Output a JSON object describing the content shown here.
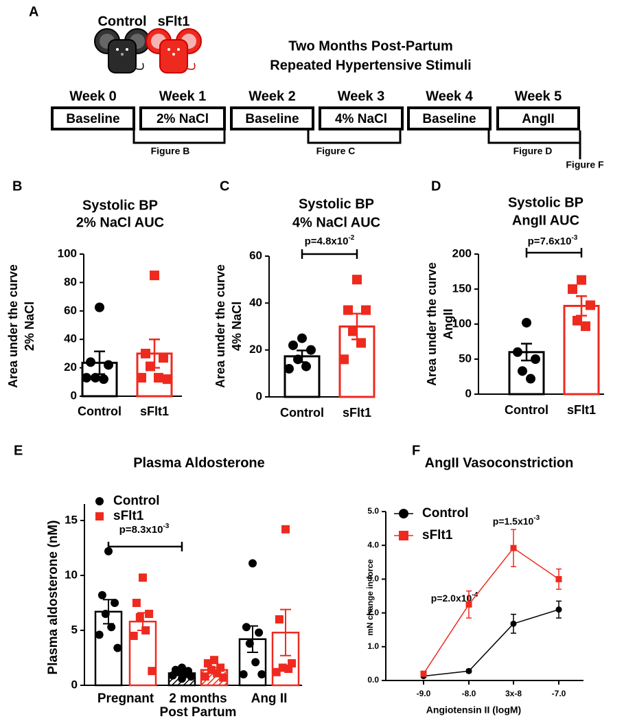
{
  "panel_a": {
    "label": "A",
    "mice": [
      "Control",
      "sFlt1"
    ],
    "title": [
      "Two Months Post-Partum",
      "Repeated Hypertensive Stimuli"
    ],
    "weeks": [
      {
        "week": "Week 0",
        "stimulus": "Baseline"
      },
      {
        "week": "Week 1",
        "stimulus": "2% NaCl"
      },
      {
        "week": "Week 2",
        "stimulus": "Baseline"
      },
      {
        "week": "Week 3",
        "stimulus": "4% NaCl"
      },
      {
        "week": "Week 4",
        "stimulus": "Baseline"
      },
      {
        "week": "Week 5",
        "stimulus": "AngII"
      }
    ],
    "brackets": [
      "Figure B",
      "Figure C",
      "Figure D",
      "Figure F"
    ]
  },
  "chart_data": [
    {
      "type": "bar",
      "label": "B",
      "title": "Systolic BP",
      "subtitle": "2% NaCl AUC",
      "ylabel": [
        "Area under the curve",
        "2% NaCl"
      ],
      "categories": [
        "Control",
        "sFlt1"
      ],
      "colors": [
        "#000000",
        "#ee2a1f"
      ],
      "markers": [
        "circle",
        "square"
      ],
      "values": [
        23.5,
        30
      ],
      "errors": [
        8,
        10
      ],
      "points": [
        [
          62.5,
          24,
          22,
          13,
          12,
          13
        ],
        [
          85,
          30,
          27,
          21,
          13,
          13,
          12
        ]
      ],
      "ylim": [
        0,
        100
      ],
      "yticks": [
        0,
        20,
        40,
        60,
        80,
        100
      ]
    },
    {
      "type": "bar",
      "label": "C",
      "title": "Systolic BP",
      "subtitle": "4% NaCl AUC",
      "ylabel": [
        "Area under the curve",
        "4% NaCl"
      ],
      "categories": [
        "Control",
        "sFlt1"
      ],
      "colors": [
        "#000000",
        "#ee2a1f"
      ],
      "markers": [
        "circle",
        "square"
      ],
      "values": [
        17.3,
        30
      ],
      "errors": [
        2.5,
        5.5
      ],
      "points": [
        [
          25,
          22,
          20,
          16,
          13,
          12
        ],
        [
          50,
          37,
          37,
          28,
          23,
          16
        ]
      ],
      "ylim": [
        0,
        60
      ],
      "yticks": [
        0,
        20,
        40,
        60
      ],
      "annotations": [
        {
          "text": "p=4.8x10",
          "superscript": "-2"
        }
      ]
    },
    {
      "type": "bar",
      "label": "D",
      "title": "Systolic BP",
      "subtitle": "AngII AUC",
      "ylabel": [
        "Area under the curve",
        "AngII"
      ],
      "categories": [
        "Control",
        "sFlt1"
      ],
      "colors": [
        "#000000",
        "#ee2a1f"
      ],
      "markers": [
        "circle",
        "square"
      ],
      "values": [
        60,
        126
      ],
      "errors": [
        12,
        14
      ],
      "points": [
        [
          102,
          60,
          50,
          33,
          22
        ],
        [
          163,
          150,
          127,
          105,
          97
        ]
      ],
      "ylim": [
        0,
        200
      ],
      "yticks": [
        0,
        50,
        100,
        150,
        200
      ],
      "annotations": [
        {
          "text": "p=7.6x10",
          "superscript": "-3"
        }
      ]
    },
    {
      "type": "bar",
      "label": "E",
      "title": "Plasma Aldosterone",
      "ylabel": "Plasma aldosterone (nM)",
      "categories": [
        "Pregnant",
        [
          "2 months",
          "Post Partum"
        ],
        "Ang II"
      ],
      "hatched": [
        false,
        true,
        false
      ],
      "series": [
        {
          "name": "Control",
          "color": "#000000",
          "marker": "circle",
          "values": [
            6.7,
            1.1,
            4.2
          ],
          "errors": [
            1.1,
            0.2,
            1.2
          ],
          "points": [
            [
              12.2,
              8.2,
              7.5,
              6.5,
              5.3,
              4.6,
              3.4
            ],
            [
              1.6,
              1.4,
              1.3,
              1.2,
              1.0,
              0.9,
              0.8,
              0.6
            ],
            [
              11.1,
              5.3,
              4.8,
              3.8,
              2.1,
              1.0,
              1.0
            ]
          ]
        },
        {
          "name": "sFlt1",
          "color": "#ee2a1f",
          "marker": "square",
          "values": [
            5.8,
            1.4,
            4.8
          ],
          "errors": [
            0.8,
            0.2,
            2.1
          ],
          "points": [
            [
              9.8,
              7.5,
              6.5,
              6.2,
              5.0,
              4.5,
              1.3
            ],
            [
              2.3,
              2.0,
              1.6,
              1.4,
              1.1,
              0.8,
              0.7
            ],
            [
              14.2,
              6.0,
              2.0,
              1.6,
              1.5,
              1.2
            ]
          ]
        }
      ],
      "ylim": [
        0,
        16.5
      ],
      "yticks": [
        0,
        5,
        10,
        15
      ],
      "legend": "upper left",
      "annotations": [
        {
          "text": "p=8.3x10",
          "superscript": "-3"
        }
      ]
    },
    {
      "type": "line",
      "label": "F",
      "title": "AngII Vasoconstriction",
      "xlabel": "Angiotensin II (logM)",
      "ylabel": "mN change in force",
      "categories": [
        "-9.0",
        "-8.0",
        "3x-8",
        "-7.0"
      ],
      "series": [
        {
          "name": "Control",
          "color": "#000000",
          "marker": "circle",
          "values": [
            0.13,
            0.28,
            1.68,
            2.1
          ],
          "errors": [
            0.03,
            0.05,
            0.28,
            0.25
          ]
        },
        {
          "name": "sFlt1",
          "color": "#ee2a1f",
          "marker": "square",
          "values": [
            0.2,
            2.25,
            3.92,
            3.0
          ],
          "errors": [
            0.05,
            0.4,
            0.55,
            0.3
          ]
        }
      ],
      "ylim": [
        0,
        5
      ],
      "yticks": [
        {
          "value": 0,
          "label": "0.0"
        },
        {
          "value": 1,
          "label": "1.0"
        },
        {
          "value": 2,
          "label": "2.0"
        },
        {
          "value": 3,
          "label": "3.0"
        },
        {
          "value": 4,
          "label": "4.0"
        },
        {
          "value": 5,
          "label": "5.0"
        }
      ],
      "legend": "upper left",
      "annotations": [
        {
          "text": "p=2.0x10",
          "superscript": "-4"
        },
        {
          "text": "p=1.5x10",
          "superscript": "-3"
        }
      ]
    }
  ]
}
